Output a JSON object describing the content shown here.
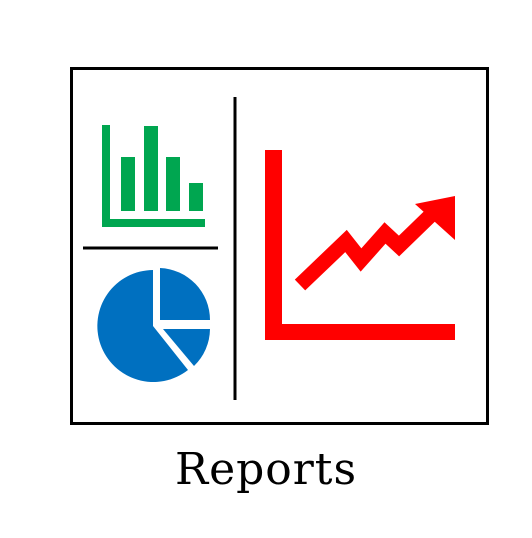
{
  "caption": "Reports",
  "colors": {
    "frame": "#000000",
    "bar_chart": "#00a650",
    "pie_chart": "#0070c0",
    "line_chart": "#ff0000"
  },
  "icons": {
    "bar_chart": "bar-chart-icon",
    "pie_chart": "pie-chart-icon",
    "line_chart": "trend-up-arrow-chart-icon"
  }
}
